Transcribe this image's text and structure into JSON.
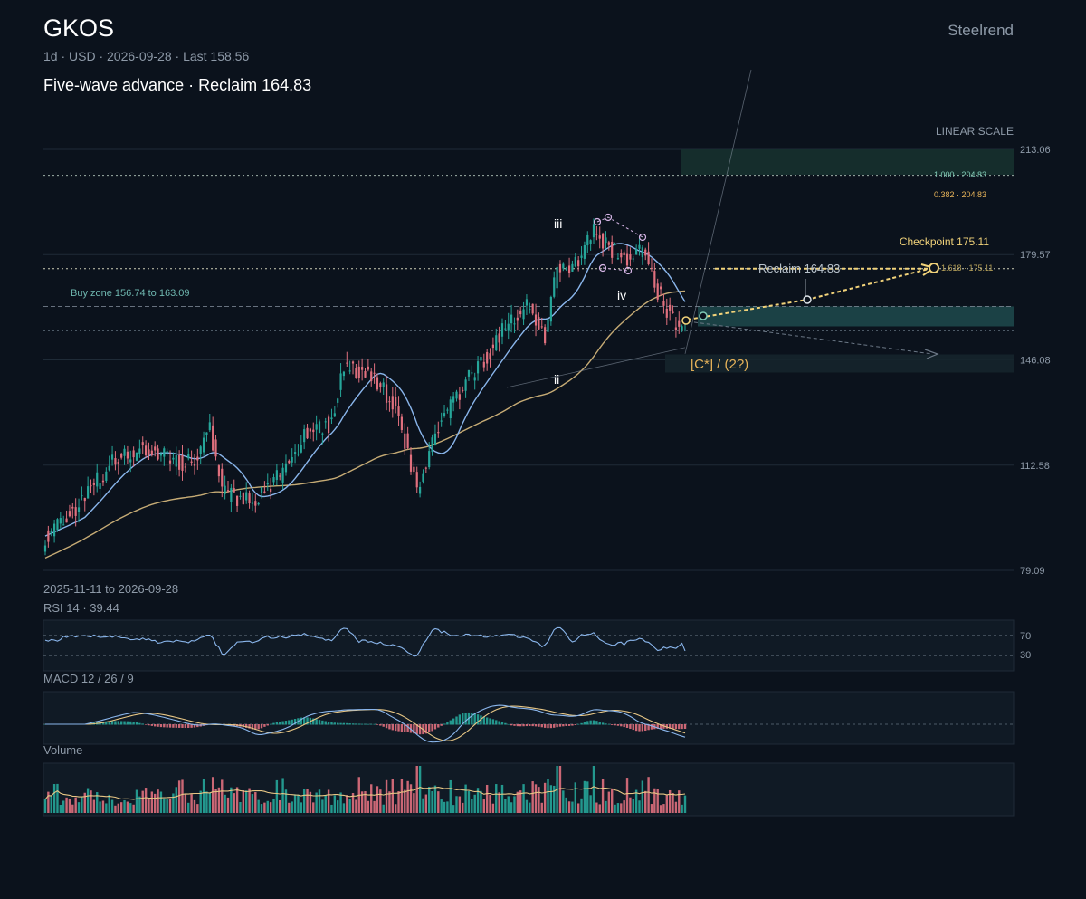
{
  "header": {
    "ticker": "GKOS",
    "meta": "1d · USD · 2026-09-28 · Last 158.56",
    "subtitle": "Five-wave advance · Reclaim 164.83",
    "brand": "Steelrend"
  },
  "colors": {
    "background": "#0b121c",
    "up": "#26a69a",
    "down": "#e0707e",
    "ma_fast": "#8ab6ec",
    "ma_slow": "#e8c785",
    "accent": "#f2d37a",
    "zone": "#1f4a4c"
  },
  "chart_data": {
    "type": "candlestick",
    "symbol": "GKOS",
    "interval": "1d",
    "date_range": "2025-11-11 to 2026-09-28",
    "scale_label": "LINEAR SCALE",
    "ylim": [
      79.09,
      213.06
    ],
    "y_ticks": [
      "213.06",
      "179.57",
      "146.08",
      "112.58",
      "79.09"
    ],
    "last": 158.56,
    "anchors": [
      {
        "bar": 0,
        "price": 90
      },
      {
        "bar": 8,
        "price": 97
      },
      {
        "bar": 22,
        "price": 113
      },
      {
        "bar": 32,
        "price": 118
      },
      {
        "bar": 40,
        "price": 115
      },
      {
        "bar": 48,
        "price": 113
      },
      {
        "bar": 54,
        "price": 124
      },
      {
        "bar": 58,
        "price": 104
      },
      {
        "bar": 68,
        "price": 101
      },
      {
        "bar": 78,
        "price": 110
      },
      {
        "bar": 86,
        "price": 124
      },
      {
        "bar": 94,
        "price": 126
      },
      {
        "bar": 98,
        "price": 144
      },
      {
        "bar": 108,
        "price": 141
      },
      {
        "bar": 116,
        "price": 129
      },
      {
        "bar": 122,
        "price": 104
      },
      {
        "bar": 128,
        "price": 123
      },
      {
        "bar": 136,
        "price": 136
      },
      {
        "bar": 146,
        "price": 149
      },
      {
        "bar": 152,
        "price": 158
      },
      {
        "bar": 158,
        "price": 163
      },
      {
        "bar": 164,
        "price": 154
      },
      {
        "bar": 168,
        "price": 176
      },
      {
        "bar": 172,
        "price": 173
      },
      {
        "bar": 180,
        "price": 188
      },
      {
        "bar": 184,
        "price": 183
      },
      {
        "bar": 190,
        "price": 178
      },
      {
        "bar": 196,
        "price": 181
      },
      {
        "bar": 200,
        "price": 170
      },
      {
        "bar": 207,
        "price": 156
      },
      {
        "bar": 210,
        "price": 158.56
      }
    ],
    "levels": [
      {
        "label": "1.000 · 204.83",
        "price": 204.83,
        "color": "#7fc9b5"
      },
      {
        "label": "0.382 · 204.83",
        "price": 204.83,
        "color": "#e8b45a"
      },
      {
        "label": "Reclaim 164.83",
        "price": 164.83
      },
      {
        "label": "Checkpoint 175.11",
        "price": 175.11
      }
    ],
    "buy_zone": {
      "label": "Buy zone 156.74 to 163.09",
      "low": 156.74,
      "high": 163.09
    },
    "target_label": "1.618 · 175.11",
    "wave_labels": [
      {
        "text": "iii",
        "bar": 169,
        "price": 189
      },
      {
        "text": "iv",
        "bar": 189,
        "price": 167
      },
      {
        "text": "ii",
        "bar": 169,
        "price": 139
      }
    ],
    "count_label": "[C*] / (2?)",
    "rsi": {
      "label": "RSI 14 · 39.44",
      "levels": [
        "70",
        "30"
      ],
      "value": 39.44
    },
    "macd": {
      "label": "MACD 12 / 26 / 9"
    },
    "volume": {
      "label": "Volume"
    }
  }
}
